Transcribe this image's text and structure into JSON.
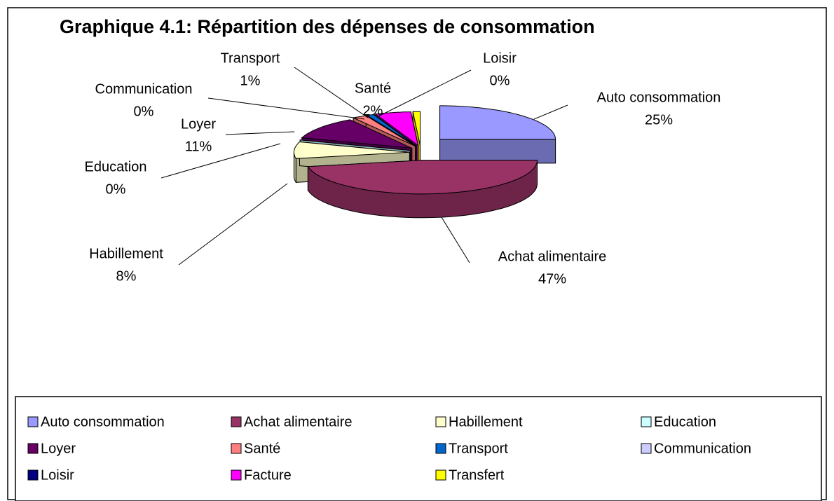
{
  "chart_data": {
    "type": "pie3d",
    "title": "Graphique 4.1: Répartition des dépenses de consommation",
    "categories": [
      "Auto consommation",
      "Achat alimentaire",
      "Habillement",
      "Education",
      "Loyer",
      "Santé",
      "Transport",
      "Communication",
      "Loisir",
      "Facture",
      "Transfert"
    ],
    "values": [
      25,
      47,
      8,
      0,
      11,
      2,
      1,
      0,
      0,
      5,
      1
    ],
    "value_labels": [
      "25%",
      "47%",
      "8%",
      "0%",
      "11%",
      "2%",
      "1%",
      "0%",
      "0%",
      null,
      null
    ],
    "colors": [
      "#9999FF",
      "#993366",
      "#FFFFCC",
      "#CCFFFF",
      "#660066",
      "#FF8080",
      "#0066CC",
      "#CCCCFF",
      "#000080",
      "#FF00FF",
      "#FFFF00"
    ],
    "legend": "bottom"
  }
}
